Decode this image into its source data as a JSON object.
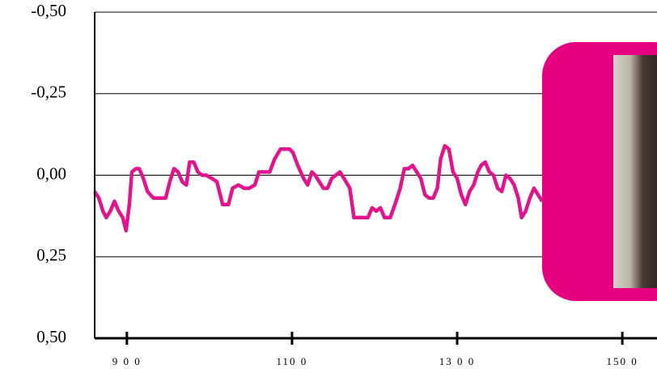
{
  "chart_data": {
    "type": "line",
    "x": [
      861,
      866,
      871,
      875,
      880,
      885,
      890,
      895,
      899,
      903,
      906,
      911,
      915,
      920,
      925,
      932,
      937,
      942,
      947,
      952,
      957,
      962,
      967,
      972,
      976,
      981,
      986,
      991,
      996,
      1003,
      1009,
      1016,
      1023,
      1028,
      1035,
      1042,
      1048,
      1055,
      1060,
      1067,
      1073,
      1079,
      1086,
      1091,
      1097,
      1101,
      1107,
      1114,
      1119,
      1124,
      1128,
      1133,
      1138,
      1143,
      1148,
      1153,
      1158,
      1163,
      1170,
      1175,
      1182,
      1192,
      1197,
      1202,
      1207,
      1212,
      1219,
      1226,
      1231,
      1236,
      1241,
      1246,
      1251,
      1256,
      1261,
      1266,
      1271,
      1276,
      1280,
      1285,
      1290,
      1295,
      1300,
      1305,
      1310,
      1315,
      1320,
      1325,
      1329,
      1334,
      1339,
      1344,
      1349,
      1354,
      1359,
      1364,
      1369,
      1374,
      1378,
      1383,
      1388,
      1393,
      1398,
      1403
    ],
    "values": [
      0.05,
      0.07,
      0.11,
      0.13,
      0.11,
      0.08,
      0.11,
      0.13,
      0.17,
      0.09,
      -0.01,
      -0.02,
      -0.02,
      0.01,
      0.05,
      0.07,
      0.07,
      0.07,
      0.07,
      0.02,
      -0.02,
      -0.01,
      0.02,
      0.03,
      -0.04,
      -0.04,
      -0.01,
      0.0,
      0.0,
      0.01,
      0.02,
      0.09,
      0.09,
      0.04,
      0.03,
      0.04,
      0.04,
      0.03,
      -0.01,
      -0.01,
      -0.01,
      -0.05,
      -0.08,
      -0.08,
      -0.08,
      -0.07,
      -0.03,
      0.01,
      0.03,
      -0.01,
      0.0,
      0.02,
      0.04,
      0.04,
      0.01,
      0.0,
      -0.01,
      0.01,
      0.04,
      0.13,
      0.13,
      0.13,
      0.1,
      0.11,
      0.1,
      0.13,
      0.13,
      0.08,
      0.04,
      -0.02,
      -0.02,
      -0.03,
      -0.01,
      0.01,
      0.06,
      0.07,
      0.07,
      0.04,
      -0.05,
      -0.09,
      -0.08,
      -0.01,
      0.01,
      0.06,
      0.09,
      0.05,
      0.03,
      -0.01,
      -0.03,
      -0.04,
      -0.01,
      0.0,
      0.04,
      0.05,
      0.0,
      0.01,
      0.03,
      0.07,
      0.13,
      0.11,
      0.07,
      0.04,
      0.06,
      0.08
    ],
    "color": "#e0148c",
    "xlim": [
      861,
      1542
    ],
    "xticks": [
      {
        "value": 900,
        "label": "9 0 0"
      },
      {
        "value": 1100,
        "label": "110 0"
      },
      {
        "value": 1300,
        "label": "13 0 0"
      },
      {
        "value": 1500,
        "label": "150 0"
      }
    ],
    "ylim": [
      0.5,
      -0.5
    ],
    "yticks": [
      {
        "value": -0.5,
        "label": "-0,50"
      },
      {
        "value": -0.25,
        "label": "-0,25"
      },
      {
        "value": 0,
        "label": "0,00"
      },
      {
        "value": 0.25,
        "label": "0,25"
      },
      {
        "value": 0.5,
        "label": "0,50"
      }
    ],
    "grid": true
  }
}
